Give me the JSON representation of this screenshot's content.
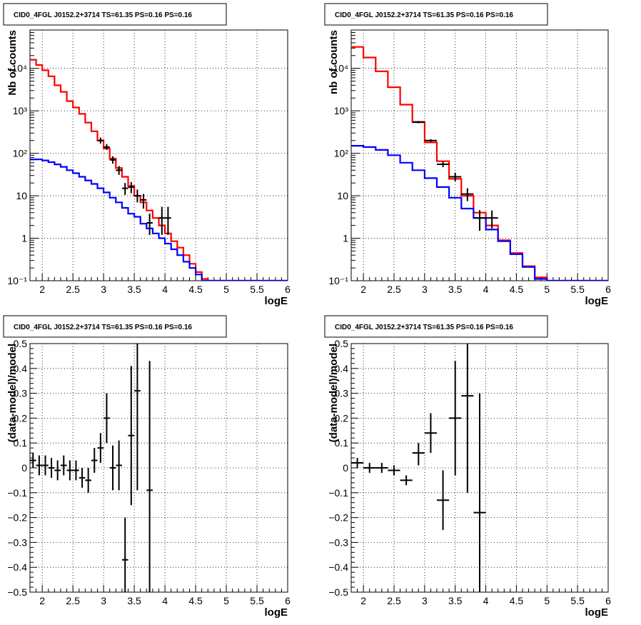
{
  "chart_data": [
    {
      "id": "p1",
      "type": "line",
      "title": "CID0_4FGL J0152.2+3714 TS=61.35 PS=0.16 PS=0.16",
      "xlabel": "logE",
      "ylabel": "Nb of counts",
      "xlim": [
        1.8,
        6.0
      ],
      "ylim": [
        0.1,
        80000
      ],
      "yscale": "log",
      "grid": true,
      "xticks": [
        "2",
        "2.5",
        "3",
        "3.5",
        "4",
        "4.5",
        "5",
        "5.5",
        "6"
      ],
      "yticks": [
        "10⁻¹",
        "1",
        "10",
        "10²",
        "10³",
        "10⁴"
      ],
      "series": [
        {
          "color": "#ff0000",
          "kind": "step",
          "binWidth": 0.1,
          "x": [
            1.85,
            1.95,
            2.05,
            2.15,
            2.25,
            2.35,
            2.45,
            2.55,
            2.65,
            2.75,
            2.85,
            2.95,
            3.05,
            3.15,
            3.25,
            3.35,
            3.45,
            3.55,
            3.65,
            3.75,
            3.85,
            3.95,
            4.05,
            4.15,
            4.25,
            4.35,
            4.45,
            4.55,
            4.65,
            4.75,
            4.85,
            4.95,
            5.05,
            5.15,
            5.25,
            5.35,
            5.45,
            5.55,
            5.65,
            5.75,
            5.85,
            5.95
          ],
          "values": [
            16000,
            12000,
            9000,
            6500,
            4000,
            2800,
            1700,
            1200,
            850,
            530,
            330,
            200,
            130,
            75,
            45,
            28,
            17,
            10,
            7,
            4.5,
            3,
            2,
            1.3,
            0.85,
            0.6,
            0.4,
            0.25,
            0.16,
            0.11,
            0.1,
            0.1,
            0.1,
            0.1,
            0.1,
            0.1,
            0.1,
            0.1,
            0.1,
            0.1,
            0.1,
            0.1,
            0.1
          ]
        },
        {
          "color": "#0000ff",
          "kind": "step",
          "binWidth": 0.1,
          "x": [
            1.85,
            1.95,
            2.05,
            2.15,
            2.25,
            2.35,
            2.45,
            2.55,
            2.65,
            2.75,
            2.85,
            2.95,
            3.05,
            3.15,
            3.25,
            3.35,
            3.45,
            3.55,
            3.65,
            3.75,
            3.85,
            3.95,
            4.05,
            4.15,
            4.25,
            4.35,
            4.45,
            4.55,
            4.65,
            4.75,
            4.85,
            4.95,
            5.05,
            5.15,
            5.25,
            5.35,
            5.45,
            5.55,
            5.65,
            5.75,
            5.85,
            5.95
          ],
          "values": [
            72,
            72,
            68,
            62,
            55,
            48,
            40,
            34,
            28,
            23,
            19,
            15,
            12,
            9,
            7,
            5.2,
            3.8,
            3.2,
            2.2,
            1.7,
            1.3,
            1.0,
            0.75,
            0.55,
            0.4,
            0.28,
            0.2,
            0.14,
            0.1,
            0.1,
            0.1,
            0.1,
            0.1,
            0.1,
            0.1,
            0.1,
            0.1,
            0.1,
            0.1,
            0.1,
            0.1,
            0.1
          ]
        },
        {
          "color": "#000000",
          "kind": "errorbar",
          "binWidth": 0.1,
          "x": [
            2.95,
            3.05,
            3.15,
            3.25,
            3.35,
            3.45,
            3.55,
            3.65,
            3.75,
            3.95,
            4.05
          ],
          "values": [
            200,
            140,
            70,
            40,
            15,
            16,
            10,
            8,
            2.3,
            3,
            3
          ],
          "low": [
            170,
            120,
            57,
            31,
            10.5,
            11.5,
            7,
            5,
            1.2,
            1.2,
            1.2
          ],
          "high": [
            235,
            165,
            85,
            50,
            20,
            21,
            14,
            11,
            3.8,
            5.5,
            5.5
          ]
        }
      ]
    },
    {
      "id": "p2",
      "type": "line",
      "title": "CID0_4FGL J0152.2+3714 TS=61.35 PS=0.16 PS=0.16",
      "xlabel": "logE",
      "ylabel": "nb of counts",
      "xlim": [
        1.8,
        6.0
      ],
      "ylim": [
        0.1,
        80000
      ],
      "yscale": "log",
      "grid": true,
      "xticks": [
        "2",
        "2.5",
        "3",
        "3.5",
        "4",
        "4.5",
        "5",
        "5.5",
        "6"
      ],
      "yticks": [
        "10⁻¹",
        "1",
        "10",
        "10²",
        "10³",
        "10⁴"
      ],
      "series": [
        {
          "color": "#ff0000",
          "kind": "step",
          "binWidth": 0.2,
          "x": [
            1.9,
            2.1,
            2.3,
            2.5,
            2.7,
            2.9,
            3.1,
            3.3,
            3.5,
            3.7,
            3.9,
            4.1,
            4.3,
            4.5,
            4.7,
            4.9,
            5.1,
            5.3,
            5.5,
            5.7,
            5.9
          ],
          "values": [
            32000,
            18000,
            8500,
            3600,
            1400,
            550,
            180,
            65,
            25,
            10,
            4.0,
            2.0,
            0.9,
            0.45,
            0.22,
            0.12,
            0.1,
            0.1,
            0.1,
            0.1,
            0.1
          ]
        },
        {
          "color": "#0000ff",
          "kind": "step",
          "binWidth": 0.2,
          "x": [
            1.9,
            2.1,
            2.3,
            2.5,
            2.7,
            2.9,
            3.1,
            3.3,
            3.5,
            3.7,
            3.9,
            4.1,
            4.3,
            4.5,
            4.7,
            4.9,
            5.1,
            5.3,
            5.5,
            5.7,
            5.9
          ],
          "values": [
            150,
            140,
            120,
            90,
            60,
            40,
            26,
            16,
            9,
            5,
            3.0,
            1.6,
            0.85,
            0.42,
            0.21,
            0.11,
            0.1,
            0.1,
            0.1,
            0.1,
            0.1
          ]
        },
        {
          "color": "#000000",
          "kind": "errorbar",
          "binWidth": 0.2,
          "x": [
            2.9,
            3.1,
            3.3,
            3.5,
            3.7,
            3.9,
            4.1
          ],
          "values": [
            540,
            200,
            55,
            28,
            11,
            3,
            3
          ],
          "low": [
            510,
            185,
            47,
            22,
            7.5,
            1.5,
            1.7
          ],
          "high": [
            575,
            215,
            63,
            35,
            15,
            4.6,
            4.5
          ]
        }
      ]
    },
    {
      "id": "p3",
      "type": "scatter",
      "title": "CID0_4FGL J0152.2+3714 TS=61.35 PS=0.16 PS=0.16",
      "xlabel": "logE",
      "ylabel": "(data-model)/model",
      "xlim": [
        1.8,
        6.0
      ],
      "ylim": [
        -0.5,
        0.5
      ],
      "yscale": "linear",
      "grid": true,
      "xticks": [
        "2",
        "2.5",
        "3",
        "3.5",
        "4",
        "4.5",
        "5",
        "5.5",
        "6"
      ],
      "yticks": [
        "−0.5",
        "−0.4",
        "−0.3",
        "−0.2",
        "−0.1",
        "0",
        "0.1",
        "0.2",
        "0.3",
        "0.4",
        "0.5"
      ],
      "series": [
        {
          "color": "#000000",
          "kind": "errorbar",
          "binWidth": 0.1,
          "x": [
            1.85,
            1.95,
            2.05,
            2.15,
            2.25,
            2.35,
            2.45,
            2.55,
            2.65,
            2.75,
            2.85,
            2.95,
            3.05,
            3.15,
            3.25,
            3.35,
            3.45,
            3.55,
            3.75
          ],
          "values": [
            0.03,
            0.01,
            0.01,
            0.0,
            -0.01,
            0.01,
            -0.01,
            -0.01,
            -0.04,
            -0.05,
            0.03,
            0.08,
            0.2,
            0.0,
            0.01,
            -0.37,
            0.13,
            0.31,
            -0.09
          ],
          "low": [
            0.0,
            -0.03,
            -0.03,
            -0.04,
            -0.05,
            -0.03,
            -0.05,
            -0.05,
            -0.08,
            -0.1,
            -0.02,
            0.02,
            0.1,
            -0.09,
            -0.09,
            -0.5,
            -0.15,
            -0.09,
            -0.5
          ],
          "high": [
            0.06,
            0.05,
            0.05,
            0.04,
            0.03,
            0.05,
            0.03,
            0.03,
            0.0,
            0.0,
            0.08,
            0.14,
            0.3,
            0.09,
            0.11,
            -0.2,
            0.41,
            0.5,
            0.43
          ]
        }
      ]
    },
    {
      "id": "p4",
      "type": "scatter",
      "title": "CID0_4FGL J0152.2+3714 TS=61.35 PS=0.16 PS=0.16",
      "xlabel": "logE",
      "ylabel": "(data-model)/model",
      "xlim": [
        1.8,
        6.0
      ],
      "ylim": [
        -0.5,
        0.5
      ],
      "yscale": "linear",
      "grid": true,
      "xticks": [
        "2",
        "2.5",
        "3",
        "3.5",
        "4",
        "4.5",
        "5",
        "5.5",
        "6"
      ],
      "yticks": [
        "−0.5",
        "−0.4",
        "−0.3",
        "−0.2",
        "−0.1",
        "0",
        "0.1",
        "0.2",
        "0.3",
        "0.4",
        "0.5"
      ],
      "series": [
        {
          "color": "#000000",
          "kind": "errorbar",
          "binWidth": 0.2,
          "x": [
            1.9,
            2.1,
            2.3,
            2.5,
            2.7,
            2.9,
            3.1,
            3.3,
            3.5,
            3.7,
            3.9
          ],
          "values": [
            0.02,
            0.0,
            0.0,
            -0.01,
            -0.05,
            0.06,
            0.14,
            -0.13,
            0.2,
            0.29,
            -0.18
          ],
          "low": [
            0.0,
            -0.02,
            -0.02,
            -0.03,
            -0.07,
            0.01,
            0.06,
            -0.25,
            -0.03,
            -0.1,
            -0.5
          ],
          "high": [
            0.04,
            0.02,
            0.02,
            0.01,
            -0.03,
            0.1,
            0.22,
            -0.01,
            0.43,
            0.5,
            0.3
          ]
        }
      ]
    }
  ]
}
